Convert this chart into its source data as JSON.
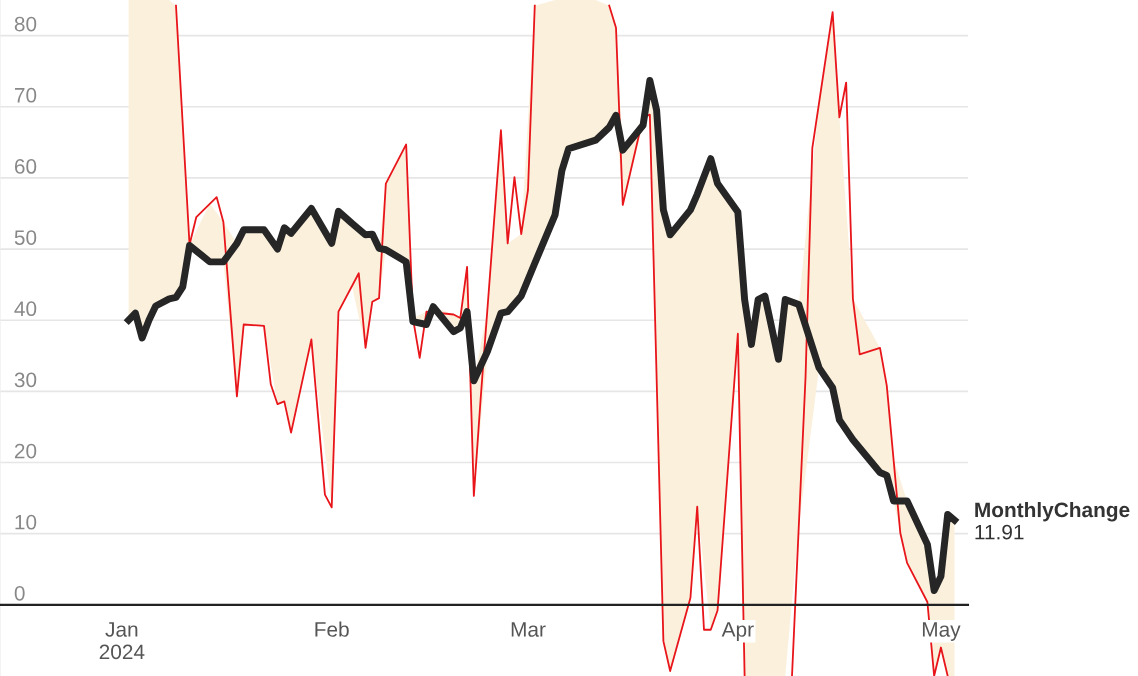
{
  "chart_data": {
    "type": "line",
    "xlim": [
      "2023-12-14",
      "2024-05-05"
    ],
    "xticks": [
      {
        "value": "2024-01-01",
        "label": "Jan\n2024"
      },
      {
        "value": "2024-02-01",
        "label": "Feb"
      },
      {
        "value": "2024-03-01",
        "label": "Mar"
      },
      {
        "value": "2024-04-01",
        "label": "Apr"
      },
      {
        "value": "2024-05-01",
        "label": "May"
      }
    ],
    "ylim": [
      -10,
      85
    ],
    "yticks": [
      0,
      10,
      20,
      30,
      40,
      50,
      60,
      70,
      80
    ],
    "grid": "y",
    "legend": false,
    "series": [
      {
        "color": "#e8161b",
        "x": [
          "2024-01-09",
          "2024-01-11",
          "2024-01-12",
          "2024-01-15",
          "2024-01-16",
          "2024-01-18",
          "2024-01-19",
          "2024-01-22",
          "2024-01-23",
          "2024-01-24",
          "2024-01-25",
          "2024-01-26",
          "2024-01-29",
          "2024-01-31",
          "2024-02-01",
          "2024-02-02",
          "2024-02-05",
          "2024-02-06",
          "2024-02-07",
          "2024-02-08",
          "2024-02-09",
          "2024-02-12",
          "2024-02-13",
          "2024-02-14",
          "2024-02-15",
          "2024-02-19",
          "2024-02-20",
          "2024-02-21",
          "2024-02-22",
          "2024-02-23",
          "2024-02-26",
          "2024-02-27",
          "2024-02-28",
          "2024-02-29",
          "2024-03-01",
          "2024-03-02",
          "2024-03-03",
          "2024-03-13",
          "2024-03-14",
          "2024-03-15",
          "2024-03-18",
          "2024-03-19",
          "2024-03-21",
          "2024-03-22",
          "2024-03-25",
          "2024-03-26",
          "2024-03-27",
          "2024-03-28",
          "2024-03-29",
          "2024-04-01",
          "2024-04-02",
          "2024-04-03",
          "2024-04-09",
          "2024-04-11",
          "2024-04-12",
          "2024-04-15",
          "2024-04-16",
          "2024-04-17",
          "2024-04-18",
          "2024-04-19",
          "2024-04-22",
          "2024-04-23",
          "2024-04-25",
          "2024-04-26",
          "2024-04-29",
          "2024-04-30",
          "2024-05-01",
          "2024-05-02"
        ],
        "values": [
          84.2,
          50.6,
          54.5,
          57.3,
          53.8,
          29.3,
          39.4,
          39.2,
          31,
          28.2,
          28.6,
          24.2,
          37.3,
          15.5,
          13.7,
          41.2,
          46.6,
          36.1,
          42.6,
          43.1,
          59.2,
          64.7,
          40.3,
          34.7,
          41.2,
          40.8,
          40.3,
          47.5,
          15.3,
          28.9,
          66.7,
          50.8,
          60.1,
          52.1,
          58.3,
          84.2,
          null,
          84.2,
          81.1,
          56.2,
          68.5,
          68.9,
          -5.1,
          -9.3,
          1,
          13.8,
          -3.5,
          -3.5,
          -0.8,
          38.1,
          -10,
          null,
          -10,
          32,
          64.2,
          83.3,
          68.5,
          73.4,
          43,
          35.2,
          36.1,
          30.8,
          10.1,
          5.9,
          0.4,
          -10,
          -6,
          -10
        ]
      },
      {
        "name": "MonthlyChange",
        "color": "#262626",
        "x": [
          "2024-01-02",
          "2024-01-03",
          "2024-01-04",
          "2024-01-05",
          "2024-01-06",
          "2024-01-08",
          "2024-01-09",
          "2024-01-10",
          "2024-01-11",
          "2024-01-14",
          "2024-01-16",
          "2024-01-18",
          "2024-01-19",
          "2024-01-22",
          "2024-01-24",
          "2024-01-25",
          "2024-01-26",
          "2024-01-29",
          "2024-02-01",
          "2024-02-02",
          "2024-02-04",
          "2024-02-06",
          "2024-02-07",
          "2024-02-08",
          "2024-02-09",
          "2024-02-12",
          "2024-02-13",
          "2024-02-15",
          "2024-02-16",
          "2024-02-19",
          "2024-02-20",
          "2024-02-21",
          "2024-02-22",
          "2024-02-24",
          "2024-02-26",
          "2024-02-27",
          "2024-02-29",
          "2024-03-02",
          "2024-03-05",
          "2024-03-06",
          "2024-03-07",
          "2024-03-11",
          "2024-03-13",
          "2024-03-14",
          "2024-03-15",
          "2024-03-18",
          "2024-03-19",
          "2024-03-20",
          "2024-03-21",
          "2024-03-22",
          "2024-03-25",
          "2024-03-26",
          "2024-03-28",
          "2024-03-29",
          "2024-04-01",
          "2024-04-02",
          "2024-04-03",
          "2024-04-04",
          "2024-04-05",
          "2024-04-07",
          "2024-04-08",
          "2024-04-10",
          "2024-04-13",
          "2024-04-15",
          "2024-04-16",
          "2024-04-18",
          "2024-04-22",
          "2024-04-23",
          "2024-04-24",
          "2024-04-26",
          "2024-04-29",
          "2024-04-30",
          "2024-05-01",
          "2024-05-02",
          "2024-05-03"
        ],
        "values": [
          40,
          41,
          37.5,
          40,
          42,
          43,
          43.2,
          44.7,
          50.5,
          48.2,
          48.2,
          50.8,
          52.7,
          52.7,
          50,
          53,
          52.2,
          55.7,
          50.8,
          55.3,
          53.6,
          52,
          52.1,
          50.1,
          49.9,
          48.2,
          39.8,
          39.4,
          41.9,
          38.4,
          38.9,
          41.2,
          31.5,
          35.6,
          41,
          41.2,
          43.4,
          48,
          54.8,
          61,
          64.1,
          65.3,
          67.1,
          68.8,
          63.9,
          67.4,
          73.7,
          69.5,
          55.5,
          52,
          55.5,
          57.7,
          62.7,
          59.2,
          55.2,
          42.9,
          36.6,
          42.9,
          43.4,
          34.5,
          42.9,
          42.2,
          33.3,
          30.5,
          26,
          23.2,
          18.6,
          18.2,
          14.6,
          14.6,
          8.5,
          2,
          4,
          12.7,
          11.91
        ],
        "lower": [
          40,
          41,
          37.5,
          40,
          42,
          43,
          43.2,
          44.7,
          50.5,
          48.2,
          48.2,
          29.3,
          39.4,
          39.2,
          28.2,
          28.6,
          24.2,
          37.3,
          13.7,
          41.2,
          44.8,
          36.1,
          42.6,
          43.1,
          49.9,
          48.2,
          39.8,
          39.4,
          41.1,
          38.4,
          38.9,
          41.2,
          15.3,
          35.6,
          41,
          41.2,
          43.4,
          48,
          54.8,
          61,
          64.1,
          65.3,
          67.1,
          68.8,
          56.2,
          67.4,
          68.9,
          31.9,
          -5.1,
          -9.3,
          1,
          13.8,
          -3.5,
          -0.8,
          38.1,
          -10,
          -10,
          -10,
          -10,
          -10,
          -10,
          11,
          33.3,
          30.5,
          26,
          23.2,
          18.6,
          18.2,
          14.6,
          5.9,
          0.4,
          -10,
          -6,
          -10,
          -10
        ],
        "upper": [
          85,
          85,
          85,
          85,
          85,
          85,
          84.2,
          67.4,
          50.6,
          56.4,
          53.8,
          50.8,
          52.7,
          52.7,
          50,
          53,
          52.2,
          55.7,
          50.8,
          55.3,
          53.6,
          52,
          52.1,
          50.1,
          59.2,
          64.7,
          40.3,
          41.2,
          41.9,
          40.8,
          40.3,
          47.5,
          31.5,
          41.5,
          66.7,
          50.8,
          52.1,
          84.2,
          85,
          85,
          85,
          85,
          84.2,
          81.1,
          63.9,
          68.5,
          73.7,
          69.5,
          55.5,
          52,
          55.5,
          57.7,
          62.7,
          59.2,
          55.2,
          42.9,
          36.6,
          42.9,
          43.4,
          34.5,
          42.9,
          42.2,
          70.6,
          83.3,
          68.5,
          43,
          36.1,
          30.8,
          20.5,
          14.6,
          8.5,
          2,
          4,
          12.7,
          11.91
        ],
        "value_labels": [
          null,
          null,
          null,
          null,
          null,
          null,
          null,
          null,
          null,
          null,
          null,
          null,
          null,
          null,
          null,
          null,
          null,
          null,
          null,
          null,
          null,
          null,
          null,
          null,
          null,
          null,
          null,
          null,
          null,
          null,
          null,
          null,
          null,
          null,
          null,
          null,
          null,
          null,
          null,
          null,
          null,
          null,
          null,
          null,
          null,
          null,
          null,
          null,
          null,
          null,
          null,
          null,
          null,
          null,
          null,
          null,
          null,
          null,
          null,
          null,
          null,
          null,
          null,
          null,
          null,
          null,
          null,
          null,
          null,
          null,
          null,
          null,
          null,
          null,
          "11.91"
        ]
      }
    ]
  }
}
